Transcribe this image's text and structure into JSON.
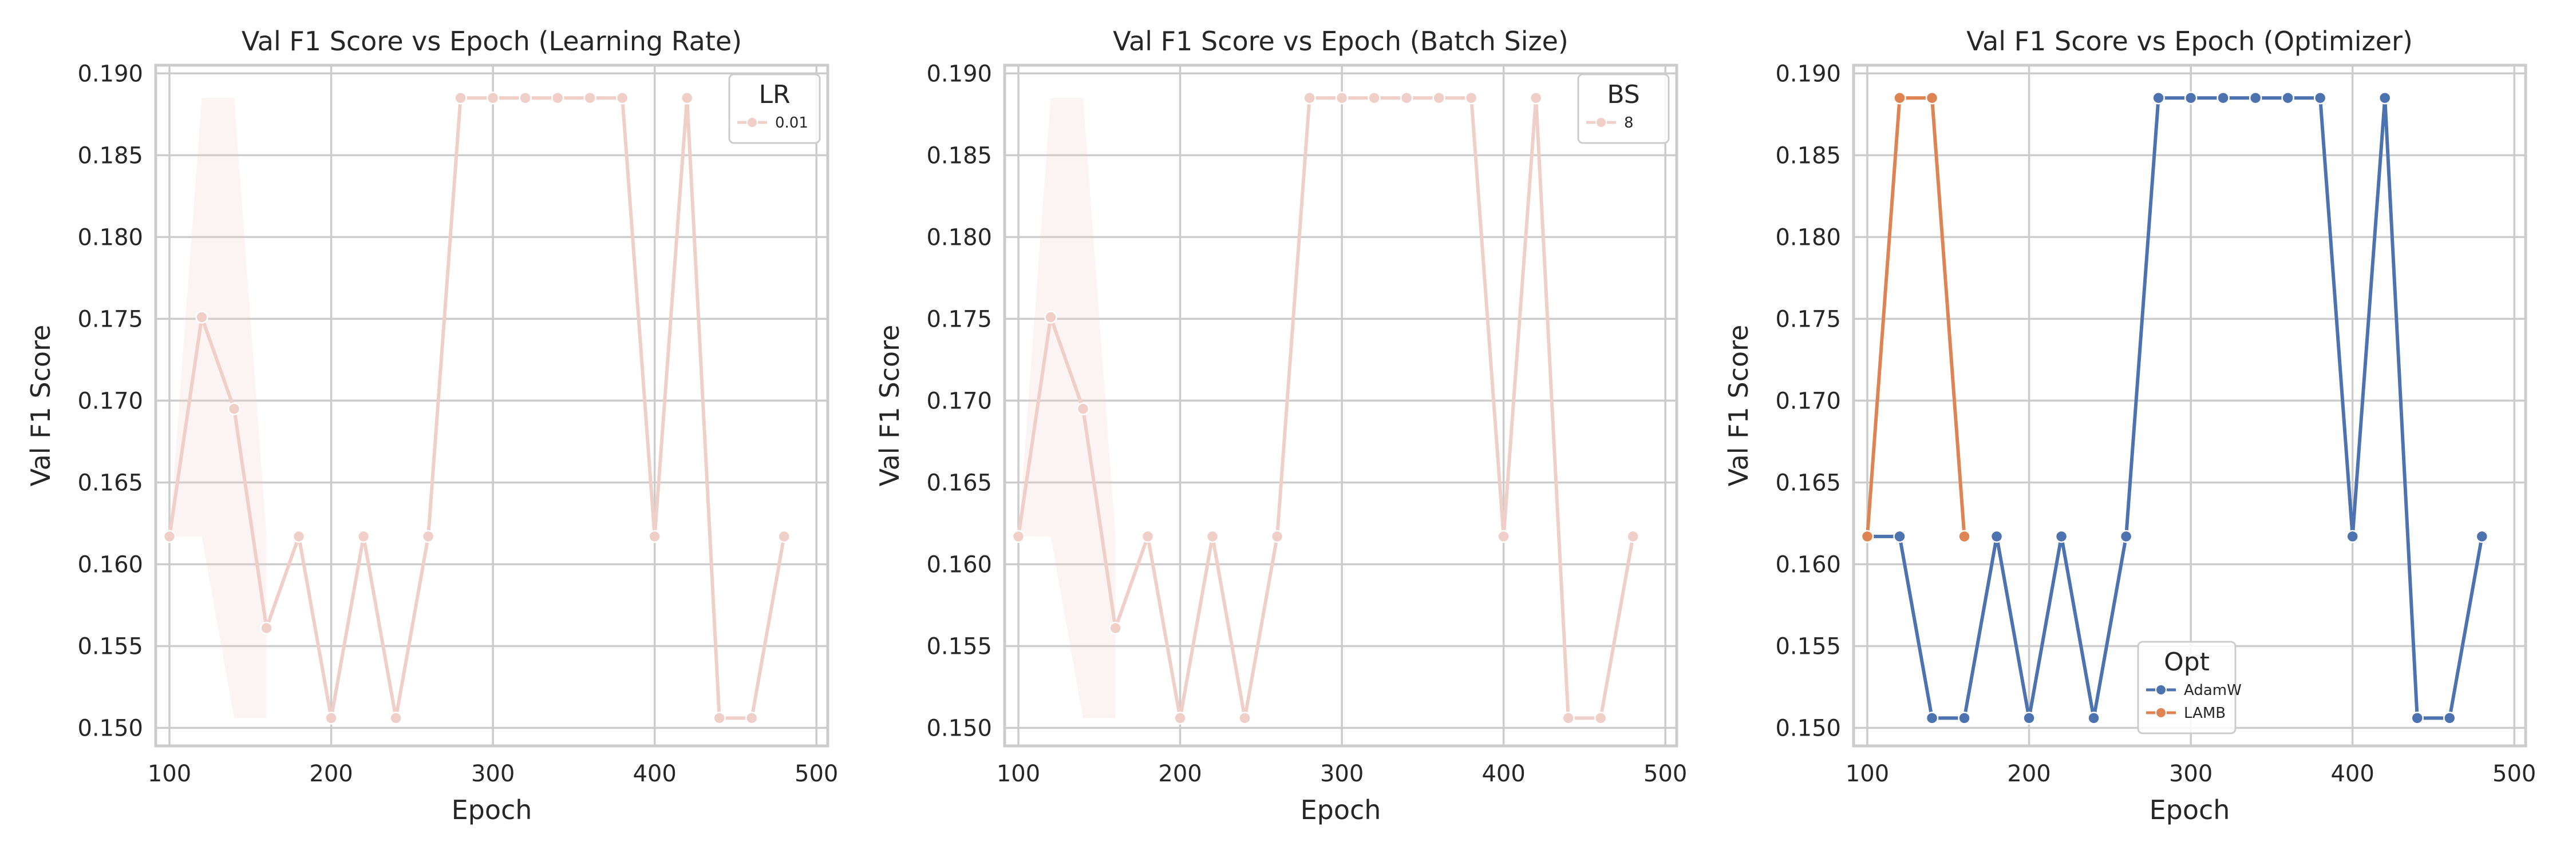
{
  "chart_data": [
    {
      "type": "line",
      "title": "Val F1 Score vs Epoch (Learning Rate)",
      "xlabel": "Epoch",
      "ylabel": "Val F1 Score",
      "xlim": [
        91.5,
        507
      ],
      "ylim": [
        0.1489,
        0.1905
      ],
      "xticks": [
        "100",
        "200",
        "300",
        "400",
        "500"
      ],
      "yticks": [
        "0.150",
        "0.155",
        "0.160",
        "0.165",
        "0.170",
        "0.175",
        "0.180",
        "0.185",
        "0.190"
      ],
      "grid": true,
      "legend": {
        "title": "LR",
        "position": "top-right"
      },
      "band": {
        "x": [
          100,
          120,
          140,
          160
        ],
        "lower": [
          0.1617,
          0.1617,
          0.1506,
          0.1506
        ],
        "upper": [
          0.1617,
          0.1885,
          0.1885,
          0.1617
        ],
        "color": "#efcfc7"
      },
      "series": [
        {
          "name": "0.01",
          "color": "#efcfc7",
          "x": [
            100,
            120,
            140,
            160,
            180,
            200,
            220,
            240,
            260,
            280,
            300,
            320,
            340,
            360,
            380,
            400,
            420,
            440,
            460,
            480
          ],
          "y": [
            0.1617,
            0.1751,
            0.1695,
            0.1561,
            0.1617,
            0.1506,
            0.1617,
            0.1506,
            0.1617,
            0.1885,
            0.1885,
            0.1885,
            0.1885,
            0.1885,
            0.1885,
            0.1617,
            0.1885,
            0.1506,
            0.1506,
            0.1617
          ]
        }
      ]
    },
    {
      "type": "line",
      "title": "Val F1 Score vs Epoch (Batch Size)",
      "xlabel": "Epoch",
      "ylabel": "Val F1 Score",
      "xlim": [
        91.5,
        507
      ],
      "ylim": [
        0.1489,
        0.1905
      ],
      "xticks": [
        "100",
        "200",
        "300",
        "400",
        "500"
      ],
      "yticks": [
        "0.150",
        "0.155",
        "0.160",
        "0.165",
        "0.170",
        "0.175",
        "0.180",
        "0.185",
        "0.190"
      ],
      "grid": true,
      "legend": {
        "title": "BS",
        "position": "top-right"
      },
      "band": {
        "x": [
          100,
          120,
          140,
          160
        ],
        "lower": [
          0.1617,
          0.1617,
          0.1506,
          0.1506
        ],
        "upper": [
          0.1617,
          0.1885,
          0.1885,
          0.1617
        ],
        "color": "#efcfc7"
      },
      "series": [
        {
          "name": "8",
          "color": "#efcfc7",
          "x": [
            100,
            120,
            140,
            160,
            180,
            200,
            220,
            240,
            260,
            280,
            300,
            320,
            340,
            360,
            380,
            400,
            420,
            440,
            460,
            480
          ],
          "y": [
            0.1617,
            0.1751,
            0.1695,
            0.1561,
            0.1617,
            0.1506,
            0.1617,
            0.1506,
            0.1617,
            0.1885,
            0.1885,
            0.1885,
            0.1885,
            0.1885,
            0.1885,
            0.1617,
            0.1885,
            0.1506,
            0.1506,
            0.1617
          ]
        }
      ]
    },
    {
      "type": "line",
      "title": "Val F1 Score vs Epoch (Optimizer)",
      "xlabel": "Epoch",
      "ylabel": "Val F1 Score",
      "xlim": [
        91.5,
        507
      ],
      "ylim": [
        0.1489,
        0.1905
      ],
      "xticks": [
        "100",
        "200",
        "300",
        "400",
        "500"
      ],
      "yticks": [
        "0.150",
        "0.155",
        "0.160",
        "0.165",
        "0.170",
        "0.175",
        "0.180",
        "0.185",
        "0.190"
      ],
      "grid": true,
      "legend": {
        "title": "Opt",
        "position": "lower-center"
      },
      "series": [
        {
          "name": "AdamW",
          "color": "#4c72b0",
          "x": [
            100,
            120,
            140,
            160,
            180,
            200,
            220,
            240,
            260,
            280,
            300,
            320,
            340,
            360,
            380,
            400,
            420,
            440,
            460,
            480
          ],
          "y": [
            0.1617,
            0.1617,
            0.1506,
            0.1506,
            0.1617,
            0.1506,
            0.1617,
            0.1506,
            0.1617,
            0.1885,
            0.1885,
            0.1885,
            0.1885,
            0.1885,
            0.1885,
            0.1617,
            0.1885,
            0.1506,
            0.1506,
            0.1617
          ]
        },
        {
          "name": "LAMB",
          "color": "#dd8452",
          "x": [
            100,
            120,
            140,
            160
          ],
          "y": [
            0.1617,
            0.1885,
            0.1885,
            0.1617
          ]
        }
      ]
    }
  ]
}
